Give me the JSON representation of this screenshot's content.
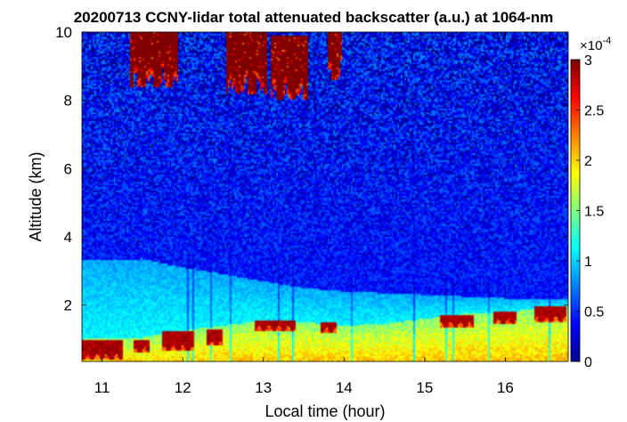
{
  "chart_data": {
    "type": "heatmap",
    "title": "20200713 CCNY-lidar total attenuated backscatter (a.u.) at 1064-nm",
    "xlabel": "Local time (hour)",
    "ylabel": "Altitude (km)",
    "xlim": [
      10.75,
      16.78
    ],
    "ylim": [
      0.35,
      10
    ],
    "x_ticks": [
      11,
      12,
      13,
      14,
      15,
      16
    ],
    "x_tick_labels": [
      "11",
      "12",
      "13",
      "14",
      "15",
      "16"
    ],
    "y_ticks": [
      2,
      4,
      6,
      8,
      10
    ],
    "y_tick_labels": [
      "2",
      "4",
      "6",
      "8",
      "10"
    ],
    "colorbar": {
      "min": 0,
      "max": 3,
      "ticks": [
        0,
        0.5,
        1,
        1.5,
        2,
        2.5,
        3
      ],
      "tick_labels": [
        "0",
        "0.5",
        "1",
        "1.5",
        "2",
        "2.5",
        "3"
      ],
      "exponent_base": "×10",
      "exponent_power": "-4",
      "colormap": "jet"
    },
    "features": {
      "boundary_layer_top_km": [
        [
          10.75,
          1.0
        ],
        [
          11.5,
          1.05
        ],
        [
          12.0,
          1.25
        ],
        [
          12.5,
          1.4
        ],
        [
          13.0,
          1.55
        ],
        [
          13.5,
          1.5
        ],
        [
          14.0,
          1.4
        ],
        [
          14.5,
          1.45
        ],
        [
          15.0,
          1.6
        ],
        [
          15.5,
          1.75
        ],
        [
          16.0,
          1.8
        ],
        [
          16.5,
          1.9
        ],
        [
          16.78,
          1.95
        ]
      ],
      "residual_layer_top_km": [
        [
          10.75,
          3.3
        ],
        [
          11.5,
          3.35
        ],
        [
          12.0,
          3.1
        ],
        [
          12.5,
          2.9
        ],
        [
          13.0,
          2.7
        ],
        [
          13.5,
          2.5
        ],
        [
          14.0,
          2.4
        ],
        [
          14.5,
          2.35
        ],
        [
          15.0,
          2.3
        ],
        [
          15.5,
          2.25
        ],
        [
          16.0,
          2.2
        ],
        [
          16.78,
          2.2
        ]
      ],
      "upper_clouds": [
        {
          "t_start": 11.35,
          "t_end": 11.95,
          "base_km": 8.4,
          "top_km": 10.0
        },
        {
          "t_start": 12.55,
          "t_end": 13.05,
          "base_km": 8.2,
          "top_km": 10.0
        },
        {
          "t_start": 13.1,
          "t_end": 13.55,
          "base_km": 8.0,
          "top_km": 9.9
        },
        {
          "t_start": 13.8,
          "t_end": 13.98,
          "base_km": 8.6,
          "top_km": 10.0
        }
      ],
      "low_clouds": [
        {
          "t_start": 10.75,
          "t_end": 11.25,
          "base_km": 0.4,
          "top_km": 0.95
        },
        {
          "t_start": 11.4,
          "t_end": 11.6,
          "base_km": 0.6,
          "top_km": 1.0
        },
        {
          "t_start": 11.75,
          "t_end": 12.15,
          "base_km": 0.65,
          "top_km": 1.25
        },
        {
          "t_start": 12.3,
          "t_end": 12.5,
          "base_km": 0.8,
          "top_km": 1.3
        },
        {
          "t_start": 12.9,
          "t_end": 13.4,
          "base_km": 1.25,
          "top_km": 1.55
        },
        {
          "t_start": 13.7,
          "t_end": 13.9,
          "base_km": 1.2,
          "top_km": 1.5
        },
        {
          "t_start": 15.2,
          "t_end": 15.6,
          "base_km": 1.35,
          "top_km": 1.7
        },
        {
          "t_start": 15.85,
          "t_end": 16.15,
          "base_km": 1.45,
          "top_km": 1.8
        },
        {
          "t_start": 16.35,
          "t_end": 16.75,
          "base_km": 1.5,
          "top_km": 1.95
        }
      ]
    }
  }
}
